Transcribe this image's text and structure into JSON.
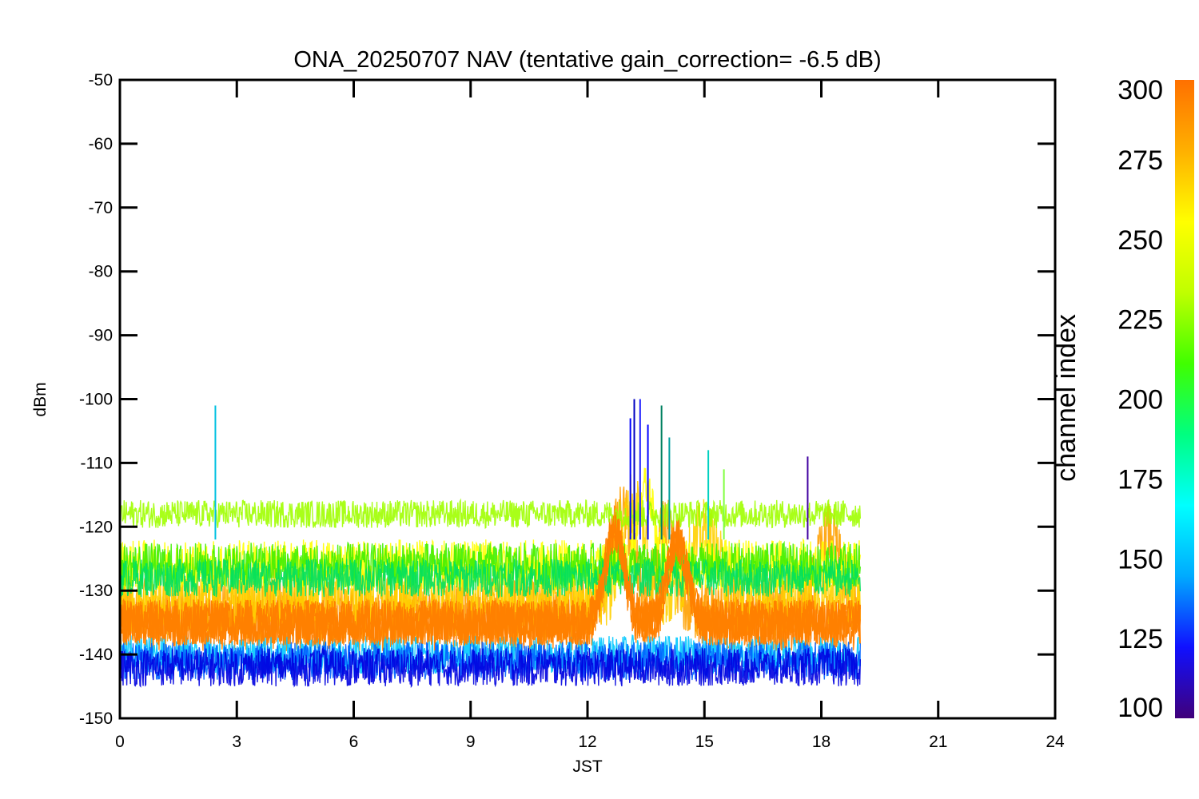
{
  "chart_data": {
    "type": "line",
    "title": "ONA_20250707 NAV (tentative gain_correction= -6.5 dB)",
    "xlabel": "JST",
    "ylabel": "dBm",
    "xlim": [
      0,
      24
    ],
    "ylim": [
      -150,
      -50
    ],
    "x_ticks": [
      "0",
      "3",
      "6",
      "9",
      "12",
      "15",
      "18",
      "21",
      "24"
    ],
    "y_ticks": [
      "-50",
      "-60",
      "-70",
      "-80",
      "-90",
      "-100",
      "-110",
      "-120",
      "-130",
      "-140",
      "-150"
    ],
    "data_end_hour": 19,
    "series": [
      {
        "channel": 300,
        "color": "#ff8000",
        "baseline": -135,
        "noise": 4.5,
        "bumps": [
          [
            12.7,
            -121,
            0.35
          ],
          [
            14.3,
            -122,
            0.35
          ]
        ]
      },
      {
        "channel": 285,
        "color": "#ffa000",
        "baseline": -133,
        "noise": 5,
        "bumps": [
          [
            12.9,
            -118,
            0.4
          ],
          [
            14.0,
            -120,
            0.3
          ],
          [
            18.2,
            -121,
            0.4
          ]
        ]
      },
      {
        "channel": 275,
        "color": "#ffd000",
        "baseline": -131,
        "noise": 5.5,
        "bumps": [
          [
            13.2,
            -116,
            0.4
          ],
          [
            15.0,
            -121,
            0.5
          ]
        ]
      },
      {
        "channel": 262,
        "color": "#ffff00",
        "baseline": -126,
        "noise": 4,
        "bumps": [
          [
            13.5,
            -114,
            0.3
          ]
        ]
      },
      {
        "channel": 250,
        "color": "#a0ff00",
        "baseline": -118,
        "noise": 2.2,
        "bumps": []
      },
      {
        "channel": 235,
        "color": "#40f000",
        "baseline": -126,
        "noise": 3.5,
        "bumps": []
      },
      {
        "channel": 215,
        "color": "#00e060",
        "baseline": -128,
        "noise": 3,
        "bumps": []
      },
      {
        "channel": 180,
        "color": "#00c8ff",
        "baseline": -140,
        "noise": 3,
        "bumps": []
      },
      {
        "channel": 150,
        "color": "#0060ff",
        "baseline": -141,
        "noise": 3,
        "bumps": []
      },
      {
        "channel": 125,
        "color": "#0000e0",
        "baseline": -142,
        "noise": 3,
        "bumps": []
      }
    ],
    "spikes": [
      {
        "x": 2.45,
        "y": -101,
        "color": "#00c0e0"
      },
      {
        "x": 13.1,
        "y": -103,
        "color": "#0000ff"
      },
      {
        "x": 13.2,
        "y": -100,
        "color": "#0000c0"
      },
      {
        "x": 13.35,
        "y": -100,
        "color": "#2020ff"
      },
      {
        "x": 13.55,
        "y": -104,
        "color": "#0000ff"
      },
      {
        "x": 13.9,
        "y": -101,
        "color": "#008060"
      },
      {
        "x": 14.1,
        "y": -106,
        "color": "#00a0a0"
      },
      {
        "x": 15.1,
        "y": -108,
        "color": "#00d0c0"
      },
      {
        "x": 17.65,
        "y": -109,
        "color": "#4000a0"
      },
      {
        "x": 15.5,
        "y": -111,
        "color": "#80ff40"
      }
    ],
    "colorbar": {
      "label": "channel index",
      "range": [
        100,
        300
      ],
      "ticks": [
        "300",
        "275",
        "250",
        "225",
        "200",
        "175",
        "150",
        "125",
        "100"
      ],
      "stops": [
        "#40007a",
        "#1010ff",
        "#00aaff",
        "#00ffff",
        "#00ff80",
        "#40ff00",
        "#c0ff00",
        "#ffff00",
        "#ffb000",
        "#ff7000"
      ]
    }
  }
}
